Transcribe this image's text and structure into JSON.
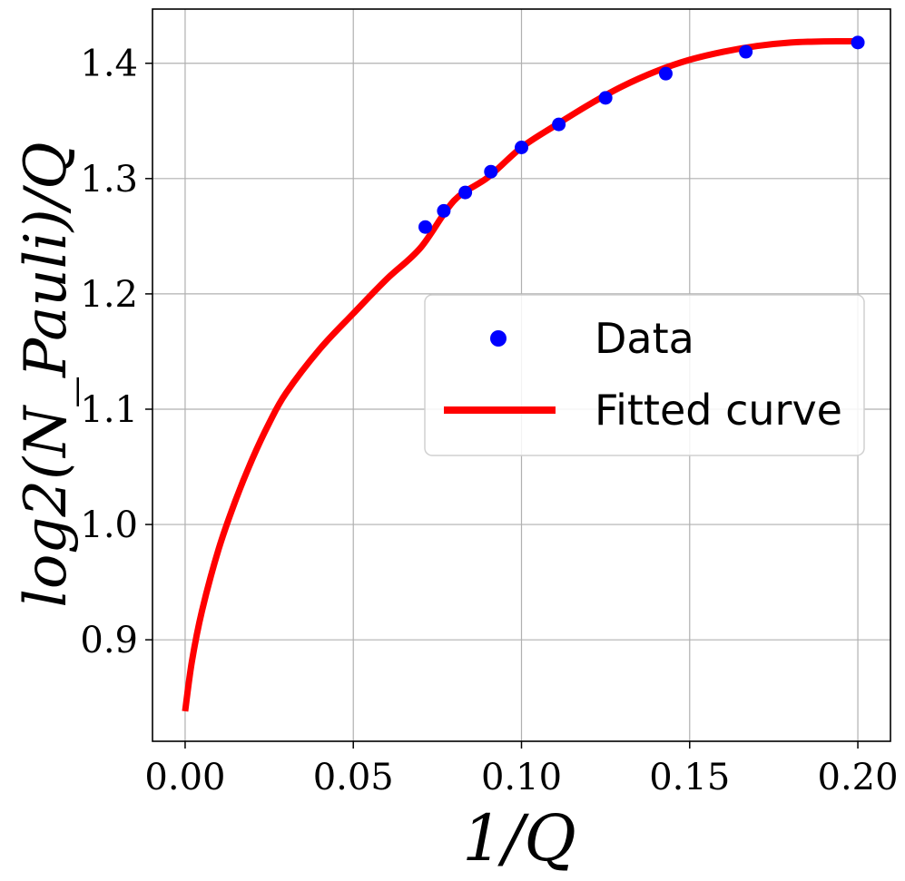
{
  "chart_data": {
    "type": "scatter",
    "title": "",
    "xlabel": "1/Q",
    "ylabel": "log2(N_Pauli)/Q",
    "xlim": [
      -0.0097,
      0.2097
    ],
    "ylim": [
      0.812,
      1.447
    ],
    "grid": true,
    "xticks": [
      0.0,
      0.05,
      0.1,
      0.15,
      0.2
    ],
    "xtick_labels": [
      "0.00",
      "0.05",
      "0.10",
      "0.15",
      "0.20"
    ],
    "yticks": [
      0.9,
      1.0,
      1.1,
      1.2,
      1.3,
      1.4
    ],
    "ytick_labels": [
      "0.9",
      "1.0",
      "1.1",
      "1.2",
      "1.3",
      "1.4"
    ],
    "legend_position": "center-right",
    "series": [
      {
        "name": "Data",
        "kind": "points",
        "color": "#0000ff",
        "x": [
          0.0714,
          0.0769,
          0.0833,
          0.0909,
          0.1,
          0.1111,
          0.125,
          0.1429,
          0.1667,
          0.2
        ],
        "y": [
          1.258,
          1.272,
          1.288,
          1.306,
          1.327,
          1.347,
          1.37,
          1.391,
          1.41,
          1.418
        ]
      },
      {
        "name": "Fitted curve",
        "kind": "line",
        "color": "#ff0000",
        "x": [
          0.0,
          0.002,
          0.005,
          0.01,
          0.015,
          0.02,
          0.025,
          0.03,
          0.04,
          0.05,
          0.06,
          0.07,
          0.08,
          0.09,
          0.1,
          0.11,
          0.12,
          0.13,
          0.14,
          0.15,
          0.16,
          0.17,
          0.18,
          0.19,
          0.2
        ],
        "y": [
          0.838,
          0.881,
          0.925,
          0.979,
          1.021,
          1.057,
          1.088,
          1.114,
          1.152,
          1.183,
          1.213,
          1.24,
          1.281,
          1.301,
          1.327,
          1.346,
          1.364,
          1.38,
          1.393,
          1.403,
          1.41,
          1.415,
          1.418,
          1.419,
          1.419
        ]
      }
    ]
  }
}
